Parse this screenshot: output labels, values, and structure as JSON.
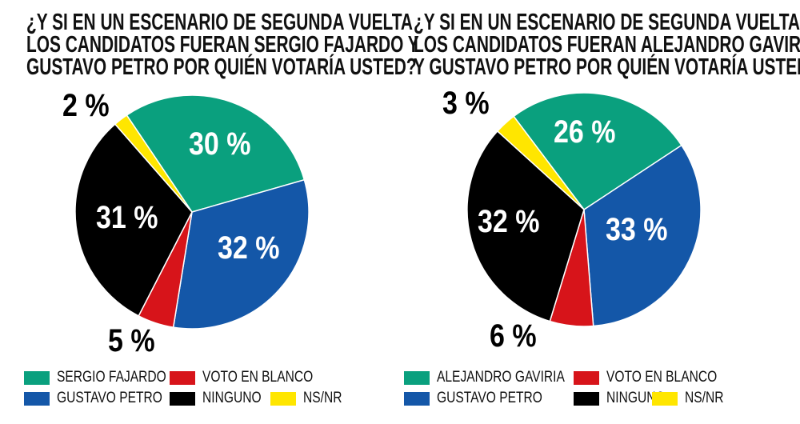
{
  "colors": {
    "green": "#0aa07e",
    "blue": "#1457a8",
    "red": "#d7141a",
    "black": "#000000",
    "yellow": "#ffe600"
  },
  "chart_data": [
    {
      "type": "pie",
      "title": [
        "¿Y SI EN UN ESCENARIO DE SEGUNDA VUELTA",
        "LOS CANDIDATOS FUERAN SERGIO FAJARDO Y",
        "GUSTAVO PETRO POR QUIÉN VOTARÍA USTED?"
      ],
      "slices": [
        {
          "name": "SERGIO FAJARDO",
          "value": 30,
          "label": "30 %",
          "color": "#0aa07e"
        },
        {
          "name": "GUSTAVO PETRO",
          "value": 32,
          "label": "32 %",
          "color": "#1457a8"
        },
        {
          "name": "VOTO EN BLANCO",
          "value": 5,
          "label": "5 %",
          "color": "#d7141a"
        },
        {
          "name": "NINGUNO",
          "value": 31,
          "label": "31 %",
          "color": "#000000"
        },
        {
          "name": "NS/NR",
          "value": 2,
          "label": "2 %",
          "color": "#ffe600"
        }
      ],
      "legend_placement": "bottom"
    },
    {
      "type": "pie",
      "title": [
        "¿Y SI EN UN ESCENARIO DE SEGUNDA VUELTA",
        "LOS CANDIDATOS FUERAN ALEJANDRO GAVIRIA",
        "Y GUSTAVO PETRO POR QUIÉN VOTARÍA USTED?"
      ],
      "slices": [
        {
          "name": "ALEJANDRO GAVIRIA",
          "value": 26,
          "label": "26 %",
          "color": "#0aa07e"
        },
        {
          "name": "GUSTAVO PETRO",
          "value": 33,
          "label": "33 %",
          "color": "#1457a8"
        },
        {
          "name": "VOTO EN BLANCO",
          "value": 6,
          "label": "6 %",
          "color": "#d7141a"
        },
        {
          "name": "NINGUNO",
          "value": 32,
          "label": "32 %",
          "color": "#000000"
        },
        {
          "name": "NS/NR",
          "value": 3,
          "label": "3 %",
          "color": "#ffe600"
        }
      ],
      "legend_placement": "bottom"
    }
  ]
}
